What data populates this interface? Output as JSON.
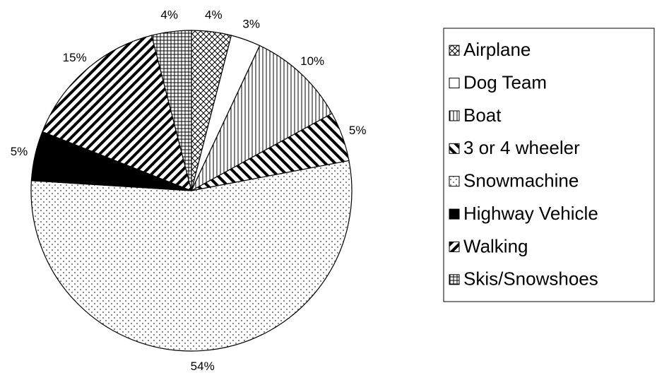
{
  "chart_data": {
    "type": "pie",
    "categories": [
      "Airplane",
      "Dog Team",
      "Boat",
      "3 or 4 wheeler",
      "Snowmachine",
      "Highway Vehicle",
      "Walking",
      "Skis/Snowshoes"
    ],
    "values": [
      4,
      3,
      10,
      5,
      54,
      5,
      15,
      4
    ],
    "value_labels": [
      "4%",
      "3%",
      "10%",
      "5%",
      "54%",
      "5%",
      "15%",
      "4%"
    ],
    "patterns": [
      "crosshatch",
      "white",
      "vertical",
      "wide-diagonal",
      "dots",
      "black",
      "diagonal",
      "grid"
    ],
    "legend": "right"
  }
}
